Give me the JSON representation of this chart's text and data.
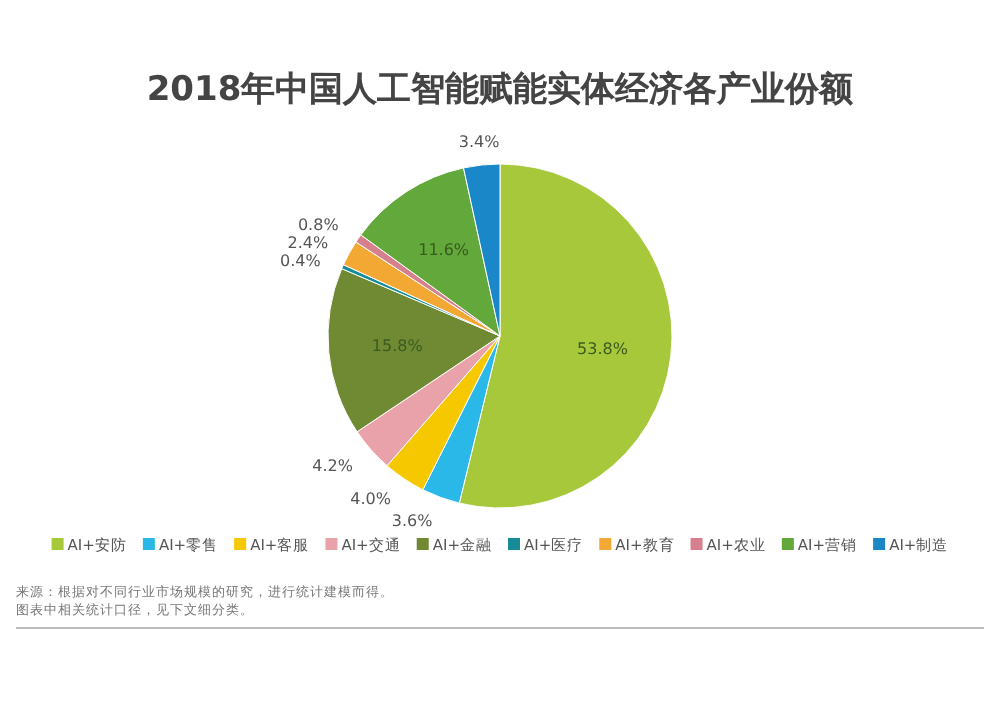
{
  "chart_data": {
    "type": "pie",
    "title": "2018年中国人工智能赋能实体经济各产业份额",
    "categories": [
      "AI+安防",
      "AI+零售",
      "AI+客服",
      "AI+交通",
      "AI+金融",
      "AI+医疗",
      "AI+教育",
      "AI+农业",
      "AI+营销",
      "AI+制造"
    ],
    "values": [
      53.8,
      3.6,
      4.0,
      4.2,
      15.8,
      0.4,
      2.4,
      0.8,
      11.6,
      3.4
    ],
    "colors": [
      "#a8c83c",
      "#2ab8e8",
      "#f5c800",
      "#eaa2aa",
      "#6f8a32",
      "#178c96",
      "#f2a832",
      "#d6808e",
      "#62a83a",
      "#1a88c8"
    ],
    "value_labels": [
      "53.8%",
      "3.6%",
      "4.0%",
      "4.2%",
      "15.8%",
      "0.4%",
      "2.4%",
      "0.8%",
      "11.6%",
      "3.4%"
    ],
    "legend": "bottom",
    "annotations": [
      "来源：根据对不同行业市场规模的研究，进行统计建模而得。",
      "图表中相关统计口径，见下文细分类。"
    ]
  }
}
